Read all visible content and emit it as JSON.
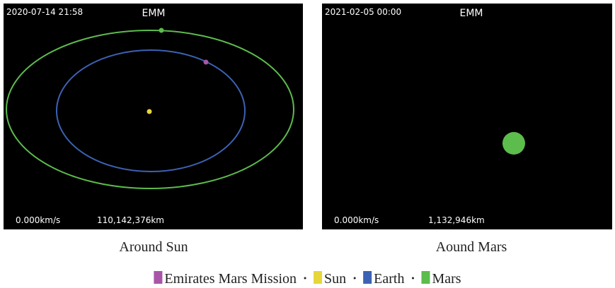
{
  "panels": [
    {
      "timestamp": "2020-07-14 21:58",
      "title": "EMM",
      "speed": "0.000km/s",
      "distance": "110,142,376km",
      "caption": "Around Sun"
    },
    {
      "timestamp": "2021-02-05 00:00",
      "title": "EMM",
      "speed": "0.000km/s",
      "distance": "1,132,946km",
      "caption": "Aound Mars"
    }
  ],
  "legend": [
    {
      "name": "Emirates Mars Mission",
      "color": "#a855a8"
    },
    {
      "name": "Sun",
      "color": "#e6d63a"
    },
    {
      "name": "Earth",
      "color": "#3c62b4"
    },
    {
      "name": "Mars",
      "color": "#5cbc4c"
    }
  ]
}
